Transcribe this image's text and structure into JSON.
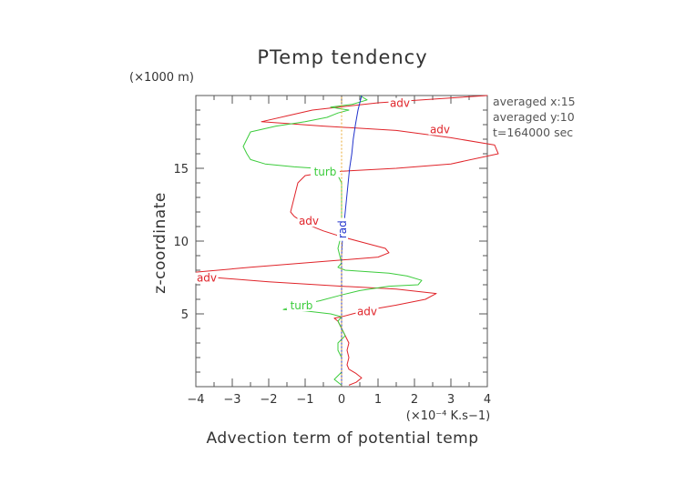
{
  "chart_data": {
    "type": "line",
    "title": "PTemp tendency",
    "xlabel": "Advection term of potential temp",
    "ylabel": "z-coordinate",
    "x_unit": "(×10⁻⁴ K.s−1)",
    "y_unit": "(×1000 m)",
    "xlim": [
      -4,
      4
    ],
    "ylim": [
      0,
      20
    ],
    "xticks": [
      -4,
      -3,
      -2,
      -1,
      0,
      1,
      2,
      3,
      4
    ],
    "yticks": [
      5,
      10,
      15
    ],
    "grid": false,
    "info_lines": [
      "averaged  x:15",
      "averaged  y:10",
      "t=164000 sec"
    ],
    "series": [
      {
        "name": "adv",
        "color": "#e0242a",
        "points": [
          [
            4.0,
            20.0
          ],
          [
            1.0,
            19.5
          ],
          [
            -0.8,
            19.0
          ],
          [
            -1.5,
            18.6
          ],
          [
            -2.2,
            18.2
          ],
          [
            -0.5,
            17.9
          ],
          [
            1.5,
            17.6
          ],
          [
            3.0,
            17.1
          ],
          [
            4.2,
            16.6
          ],
          [
            4.3,
            16.0
          ],
          [
            3.0,
            15.3
          ],
          [
            1.5,
            15.0
          ],
          [
            0.0,
            14.8
          ],
          [
            -0.5,
            14.7
          ],
          [
            -1.0,
            14.5
          ],
          [
            -1.2,
            14.0
          ],
          [
            -1.3,
            13.0
          ],
          [
            -1.4,
            12.0
          ],
          [
            -1.3,
            11.7
          ],
          [
            -1.0,
            11.2
          ],
          [
            -0.5,
            10.7
          ],
          [
            0.0,
            10.3
          ],
          [
            0.6,
            9.9
          ],
          [
            1.2,
            9.5
          ],
          [
            1.3,
            9.2
          ],
          [
            1.0,
            8.9
          ],
          [
            -0.5,
            8.6
          ],
          [
            -2.5,
            8.2
          ],
          [
            -4.3,
            7.8
          ],
          [
            -3.5,
            7.5
          ],
          [
            -2.0,
            7.2
          ],
          [
            0.0,
            6.9
          ],
          [
            1.5,
            6.7
          ],
          [
            2.6,
            6.4
          ],
          [
            2.3,
            6.0
          ],
          [
            1.5,
            5.6
          ],
          [
            0.8,
            5.3
          ],
          [
            0.3,
            5.0
          ],
          [
            0.0,
            4.8
          ],
          [
            -0.2,
            4.7
          ],
          [
            -0.1,
            4.5
          ],
          [
            0.0,
            4.0
          ],
          [
            0.1,
            3.5
          ],
          [
            0.2,
            3.0
          ],
          [
            0.15,
            2.5
          ],
          [
            0.2,
            2.0
          ],
          [
            0.15,
            1.5
          ],
          [
            0.2,
            1.2
          ],
          [
            0.4,
            0.9
          ],
          [
            0.55,
            0.6
          ],
          [
            0.4,
            0.3
          ],
          [
            0.2,
            0.1
          ]
        ]
      },
      {
        "name": "turb",
        "color": "#3ccc3c",
        "points": [
          [
            0.5,
            20.0
          ],
          [
            0.7,
            19.7
          ],
          [
            0.3,
            19.4
          ],
          [
            -0.3,
            19.2
          ],
          [
            0.2,
            19.0
          ],
          [
            -0.1,
            18.8
          ],
          [
            -0.4,
            18.5
          ],
          [
            -1.0,
            18.2
          ],
          [
            -1.8,
            17.9
          ],
          [
            -2.5,
            17.5
          ],
          [
            -2.6,
            17.0
          ],
          [
            -2.7,
            16.5
          ],
          [
            -2.6,
            16.0
          ],
          [
            -2.5,
            15.6
          ],
          [
            -2.1,
            15.3
          ],
          [
            -1.3,
            15.1
          ],
          [
            -0.7,
            15.0
          ],
          [
            -0.3,
            14.8
          ],
          [
            -0.1,
            14.5
          ],
          [
            0.0,
            14.0
          ],
          [
            0.0,
            13.0
          ],
          [
            0.0,
            12.0
          ],
          [
            0.0,
            11.0
          ],
          [
            -0.05,
            10.0
          ],
          [
            -0.1,
            9.5
          ],
          [
            -0.05,
            9.0
          ],
          [
            0.0,
            8.5
          ],
          [
            -0.1,
            8.2
          ],
          [
            0.1,
            8.0
          ],
          [
            0.7,
            7.9
          ],
          [
            1.3,
            7.8
          ],
          [
            1.8,
            7.6
          ],
          [
            2.2,
            7.3
          ],
          [
            2.1,
            7.0
          ],
          [
            1.3,
            6.9
          ],
          [
            0.5,
            6.6
          ],
          [
            0.0,
            6.3
          ],
          [
            -0.6,
            5.9
          ],
          [
            -1.2,
            5.6
          ],
          [
            -1.6,
            5.3
          ],
          [
            -1.0,
            5.2
          ],
          [
            -0.3,
            5.0
          ],
          [
            0.0,
            4.8
          ],
          [
            -0.1,
            4.5
          ],
          [
            0.0,
            4.0
          ],
          [
            0.1,
            3.5
          ],
          [
            -0.1,
            3.0
          ],
          [
            -0.1,
            2.5
          ],
          [
            0.0,
            2.0
          ],
          [
            0.0,
            1.5
          ],
          [
            0.0,
            1.0
          ],
          [
            -0.2,
            0.5
          ],
          [
            0.0,
            0.1
          ]
        ]
      },
      {
        "name": "rad",
        "color": "#2233cc",
        "points": [
          [
            0.55,
            20.0
          ],
          [
            0.45,
            19.0
          ],
          [
            0.38,
            18.0
          ],
          [
            0.32,
            17.0
          ],
          [
            0.28,
            16.0
          ],
          [
            0.22,
            15.0
          ],
          [
            0.18,
            14.0
          ],
          [
            0.14,
            13.0
          ],
          [
            0.1,
            12.0
          ],
          [
            0.06,
            11.0
          ],
          [
            0.02,
            10.0
          ],
          [
            0.0,
            9.0
          ],
          [
            0.0,
            8.0
          ],
          [
            0.0,
            7.0
          ],
          [
            0.0,
            6.0
          ],
          [
            0.0,
            5.0
          ],
          [
            0.0,
            4.0
          ],
          [
            0.0,
            3.0
          ],
          [
            0.0,
            2.0
          ],
          [
            0.0,
            1.0
          ],
          [
            0.0,
            0.1
          ]
        ]
      },
      {
        "name": "",
        "color": "#e8a830",
        "dashed": true,
        "points": [
          [
            0.0,
            19.9
          ],
          [
            0.0,
            0.1
          ]
        ]
      }
    ],
    "curve_labels": [
      {
        "text": "adv",
        "series": "adv",
        "x": 1.6,
        "y": 19.4
      },
      {
        "text": "adv",
        "series": "adv",
        "x": 2.7,
        "y": 17.6
      },
      {
        "text": "turb",
        "series": "turb",
        "x": -0.45,
        "y": 14.7
      },
      {
        "text": "adv",
        "series": "adv",
        "x": -0.9,
        "y": 11.3
      },
      {
        "text": "rad",
        "series": "rad",
        "x": 0.05,
        "y": 10.8
      },
      {
        "text": "adv",
        "series": "adv",
        "x": -3.7,
        "y": 7.4
      },
      {
        "text": "turb",
        "series": "turb",
        "x": -1.1,
        "y": 5.5
      },
      {
        "text": "adv",
        "series": "adv",
        "x": 0.7,
        "y": 5.1
      }
    ]
  }
}
